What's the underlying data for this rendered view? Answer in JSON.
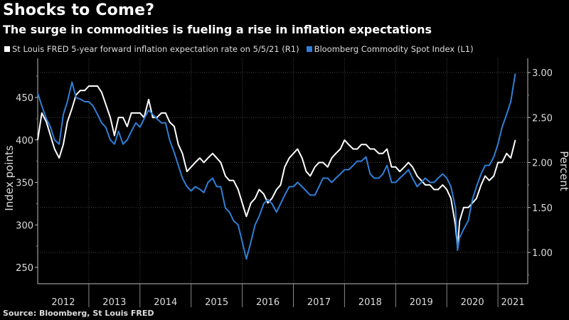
{
  "header": {
    "title": "Shocks to Come?",
    "subtitle": "The surge in commodities is fueling a rise in inflation expectations"
  },
  "footer": {
    "source": "Source: Bloomberg, St Louis FRED"
  },
  "colors": {
    "background": "#000000",
    "white_series": "#ffffff",
    "blue_series": "#2f7fd8",
    "axis": "#cccccc",
    "grid": "#555555"
  },
  "chart_data": {
    "type": "line",
    "title": "Shocks to Come?",
    "subtitle": "The surge in commodities is fueling a rise in inflation expectations",
    "xlabel": "",
    "ylabel_left": "Index points",
    "ylabel_right": "Percent",
    "ylim_left": [
      235,
      495
    ],
    "ylim_right": [
      0.77,
      3.2
    ],
    "xlim": [
      2012.0,
      2021.6
    ],
    "yticks_left": [
      250,
      300,
      350,
      400,
      450
    ],
    "yticks_right": [
      "1.00",
      "1.50",
      "2.00",
      "2.50",
      "3.00"
    ],
    "xticks": [
      "2012",
      "2013",
      "2014",
      "2015",
      "2016",
      "2017",
      "2018",
      "2019",
      "2020",
      "2021"
    ],
    "grid": true,
    "legend_position": "top-left",
    "series": [
      {
        "name": "St Louis FRED 5-year forward inflation expectation rate on 5/5/21 (R1)",
        "axis": "right",
        "color": "#ffffff",
        "x": [
          2012.0,
          2012.08,
          2012.17,
          2012.25,
          2012.33,
          2012.42,
          2012.5,
          2012.58,
          2012.67,
          2012.75,
          2012.83,
          2012.92,
          2013.0,
          2013.08,
          2013.17,
          2013.25,
          2013.33,
          2013.42,
          2013.5,
          2013.58,
          2013.67,
          2013.75,
          2013.83,
          2013.92,
          2014.0,
          2014.08,
          2014.17,
          2014.25,
          2014.33,
          2014.42,
          2014.5,
          2014.58,
          2014.67,
          2014.75,
          2014.83,
          2014.92,
          2015.0,
          2015.08,
          2015.17,
          2015.25,
          2015.33,
          2015.42,
          2015.5,
          2015.58,
          2015.67,
          2015.75,
          2015.83,
          2015.92,
          2016.0,
          2016.08,
          2016.17,
          2016.25,
          2016.33,
          2016.42,
          2016.5,
          2016.58,
          2016.67,
          2016.75,
          2016.83,
          2016.92,
          2017.0,
          2017.08,
          2017.17,
          2017.25,
          2017.33,
          2017.42,
          2017.5,
          2017.58,
          2017.67,
          2017.75,
          2017.83,
          2017.92,
          2018.0,
          2018.08,
          2018.17,
          2018.25,
          2018.33,
          2018.42,
          2018.5,
          2018.58,
          2018.67,
          2018.75,
          2018.83,
          2018.92,
          2019.0,
          2019.08,
          2019.17,
          2019.25,
          2019.33,
          2019.42,
          2019.5,
          2019.58,
          2019.67,
          2019.75,
          2019.83,
          2019.92,
          2020.0,
          2020.08,
          2020.17,
          2020.21,
          2020.25,
          2020.33,
          2020.42,
          2020.5,
          2020.58,
          2020.67,
          2020.75,
          2020.83,
          2020.92,
          2021.0,
          2021.08,
          2021.17,
          2021.25,
          2021.34
        ],
        "values": [
          2.25,
          2.55,
          2.45,
          2.3,
          2.15,
          2.05,
          2.2,
          2.45,
          2.6,
          2.75,
          2.8,
          2.8,
          2.85,
          2.85,
          2.85,
          2.78,
          2.65,
          2.5,
          2.3,
          2.5,
          2.5,
          2.4,
          2.55,
          2.55,
          2.55,
          2.5,
          2.7,
          2.5,
          2.5,
          2.55,
          2.55,
          2.45,
          2.4,
          2.2,
          2.1,
          1.9,
          1.95,
          2.0,
          2.05,
          2.0,
          2.05,
          2.1,
          2.05,
          2.0,
          1.85,
          1.8,
          1.8,
          1.7,
          1.55,
          1.4,
          1.55,
          1.6,
          1.7,
          1.65,
          1.55,
          1.6,
          1.7,
          1.75,
          1.95,
          2.05,
          2.1,
          2.15,
          2.05,
          1.9,
          1.85,
          1.95,
          2.0,
          2.0,
          1.95,
          2.05,
          2.1,
          2.15,
          2.25,
          2.2,
          2.15,
          2.15,
          2.2,
          2.2,
          2.15,
          2.15,
          2.1,
          2.1,
          2.15,
          1.95,
          1.95,
          1.9,
          1.95,
          2.0,
          1.95,
          1.85,
          1.8,
          1.75,
          1.75,
          1.7,
          1.7,
          1.75,
          1.7,
          1.6,
          1.3,
          1.05,
          1.35,
          1.5,
          1.5,
          1.55,
          1.6,
          1.75,
          1.85,
          1.8,
          1.85,
          2.0,
          2.0,
          2.1,
          2.05,
          2.25
        ]
      },
      {
        "name": "Bloomberg Commodity Spot Index (L1)",
        "axis": "left",
        "color": "#2f7fd8",
        "x": [
          2012.0,
          2012.08,
          2012.17,
          2012.25,
          2012.33,
          2012.42,
          2012.5,
          2012.58,
          2012.67,
          2012.75,
          2012.83,
          2012.92,
          2013.0,
          2013.08,
          2013.17,
          2013.25,
          2013.33,
          2013.42,
          2013.5,
          2013.58,
          2013.67,
          2013.75,
          2013.83,
          2013.92,
          2014.0,
          2014.08,
          2014.17,
          2014.25,
          2014.33,
          2014.42,
          2014.5,
          2014.58,
          2014.67,
          2014.75,
          2014.83,
          2014.92,
          2015.0,
          2015.08,
          2015.17,
          2015.25,
          2015.33,
          2015.42,
          2015.5,
          2015.58,
          2015.67,
          2015.75,
          2015.83,
          2015.92,
          2016.0,
          2016.08,
          2016.17,
          2016.25,
          2016.33,
          2016.42,
          2016.5,
          2016.58,
          2016.67,
          2016.75,
          2016.83,
          2016.92,
          2017.0,
          2017.08,
          2017.17,
          2017.25,
          2017.33,
          2017.42,
          2017.5,
          2017.58,
          2017.67,
          2017.75,
          2017.83,
          2017.92,
          2018.0,
          2018.08,
          2018.17,
          2018.25,
          2018.33,
          2018.42,
          2018.5,
          2018.58,
          2018.67,
          2018.75,
          2018.83,
          2018.92,
          2019.0,
          2019.08,
          2019.17,
          2019.25,
          2019.33,
          2019.42,
          2019.5,
          2019.58,
          2019.67,
          2019.75,
          2019.83,
          2019.92,
          2020.0,
          2020.08,
          2020.17,
          2020.21,
          2020.25,
          2020.33,
          2020.42,
          2020.5,
          2020.58,
          2020.67,
          2020.75,
          2020.83,
          2020.92,
          2021.0,
          2021.08,
          2021.17,
          2021.25,
          2021.34
        ],
        "values": [
          455,
          440,
          425,
          415,
          400,
          395,
          430,
          445,
          468,
          450,
          448,
          445,
          445,
          440,
          430,
          420,
          415,
          400,
          395,
          410,
          395,
          400,
          410,
          420,
          415,
          425,
          435,
          430,
          425,
          420,
          420,
          400,
          385,
          370,
          355,
          345,
          340,
          345,
          342,
          338,
          350,
          355,
          345,
          345,
          320,
          315,
          305,
          300,
          280,
          260,
          280,
          300,
          310,
          325,
          330,
          325,
          315,
          325,
          335,
          345,
          345,
          350,
          345,
          340,
          335,
          335,
          345,
          355,
          355,
          350,
          355,
          360,
          365,
          365,
          370,
          375,
          375,
          380,
          360,
          355,
          355,
          360,
          370,
          350,
          350,
          355,
          360,
          365,
          355,
          345,
          350,
          355,
          350,
          350,
          355,
          360,
          355,
          345,
          320,
          270,
          285,
          295,
          305,
          330,
          345,
          360,
          370,
          370,
          380,
          395,
          415,
          430,
          445,
          478
        ]
      }
    ]
  },
  "legend": {
    "items": [
      {
        "label": "St Louis FRED 5-year forward inflation expectation rate on 5/5/21 (R1)",
        "color": "#ffffff"
      },
      {
        "label": "Bloomberg Commodity Spot Index (L1)",
        "color": "#2f7fd8"
      }
    ]
  }
}
